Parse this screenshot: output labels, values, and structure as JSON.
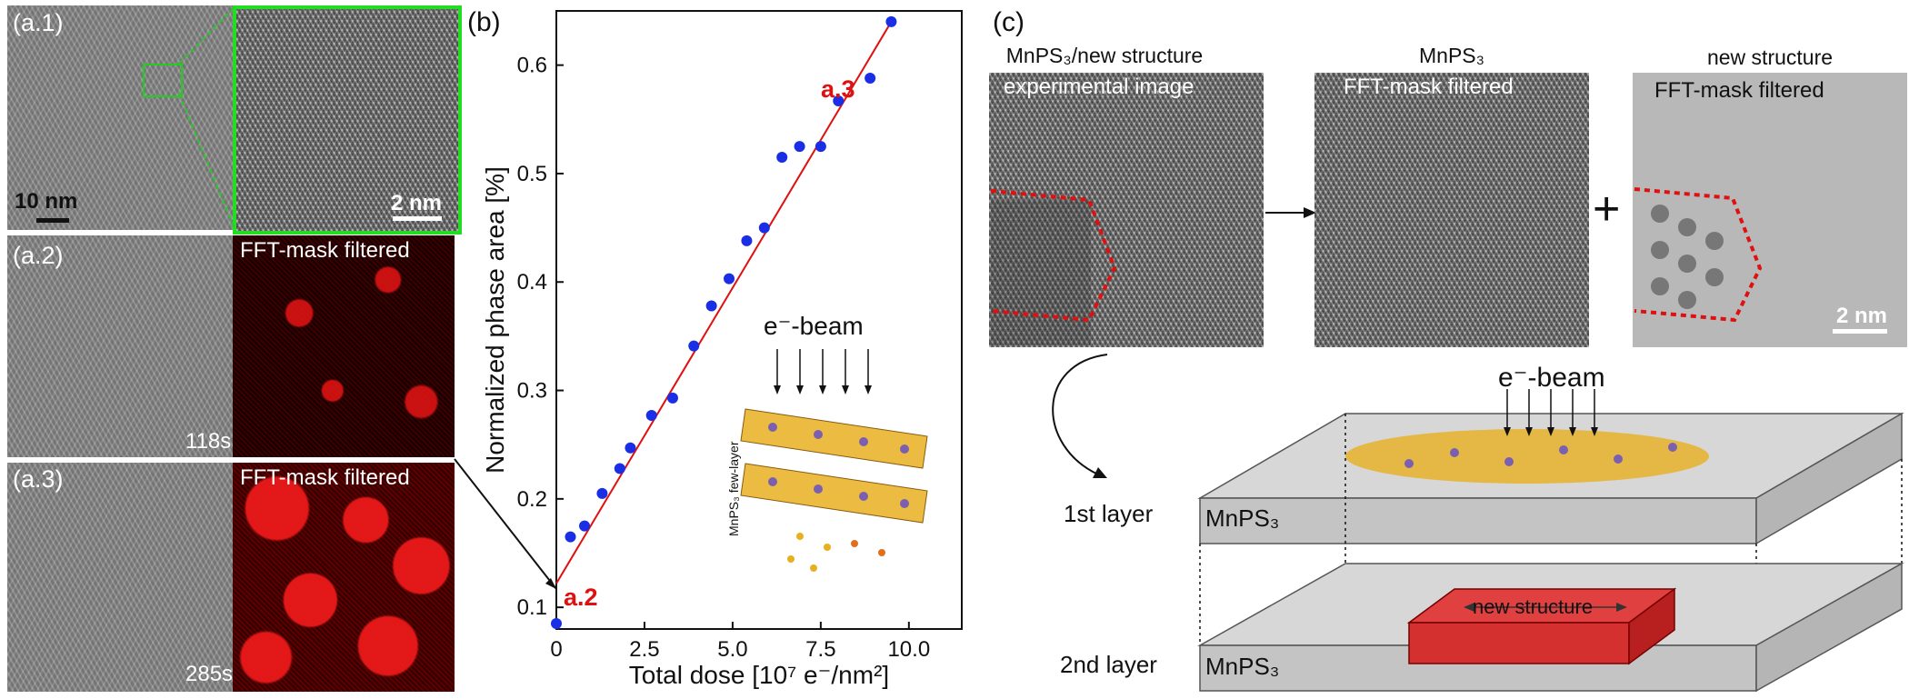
{
  "panel_a": {
    "a1": {
      "label": "(a.1)",
      "scalebar_main": "10 nm",
      "scalebar_zoom": "2 nm"
    },
    "a2": {
      "label": "(a.2)",
      "time": "118s",
      "filter_label": "FFT-mask filtered"
    },
    "a3": {
      "label": "(a.3)",
      "time": "285s",
      "filter_label": "FFT-mask filtered"
    }
  },
  "panel_b": {
    "label": "(b)",
    "point_label_start": "a.2",
    "point_label_end": "a.3",
    "inset_beam": "e⁻-beam",
    "inset_caption": "MnPS₃ few-layer"
  },
  "chart_data": {
    "type": "scatter",
    "xlabel": "Total dose [10⁷ e⁻/nm²]",
    "ylabel": "Normalized phase area [%]",
    "xlim": [
      0,
      11.5
    ],
    "ylim": [
      0.08,
      0.65
    ],
    "xticks": [
      0,
      2.5,
      5.0,
      7.5,
      10.0
    ],
    "xtick_labels": [
      "0",
      "2.5",
      "5.0",
      "7.5",
      "10.0"
    ],
    "yticks": [
      0.1,
      0.2,
      0.3,
      0.4,
      0.5,
      0.6
    ],
    "ytick_labels": [
      "0.1",
      "0.2",
      "0.3",
      "0.4",
      "0.5",
      "0.6"
    ],
    "series": [
      {
        "x": [
          0.0,
          0.4,
          0.8,
          1.3,
          1.8,
          2.1,
          2.7,
          3.3,
          3.9,
          4.4,
          4.9,
          5.4,
          5.9,
          6.4,
          6.9,
          7.5,
          8.0,
          8.9,
          9.5
        ],
        "y": [
          0.085,
          0.165,
          0.175,
          0.205,
          0.228,
          0.247,
          0.277,
          0.293,
          0.341,
          0.378,
          0.403,
          0.438,
          0.45,
          0.515,
          0.525,
          0.525,
          0.567,
          0.588,
          0.64
        ],
        "color": "#1a2ee6"
      }
    ],
    "fit_line": {
      "x": [
        0,
        9.5
      ],
      "y": [
        0.122,
        0.64
      ],
      "color": "#e01010"
    }
  },
  "panel_c": {
    "label": "(c)",
    "img1_title": "MnPS₃/new structure",
    "img1_overlay": "experimental image",
    "img2_title": "MnPS₃",
    "img2_overlay": "FFT-mask filtered",
    "img3_title": "new structure",
    "img3_overlay": "FFT-mask filtered",
    "scalebar": "2 nm",
    "plus": "+",
    "beam": "e⁻-beam",
    "layer1": "1st layer",
    "layer2": "2nd layer",
    "mnps3_1": "MnPS₃",
    "mnps3_2": "MnPS₃",
    "new_structure": "new structure"
  }
}
